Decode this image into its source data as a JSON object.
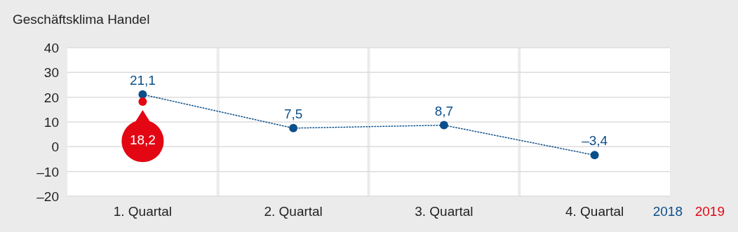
{
  "chart_data": {
    "type": "line",
    "title": "Geschäftsklima Handel",
    "categories": [
      "1. Quartal",
      "2. Quartal",
      "3. Quartal",
      "4. Quartal"
    ],
    "series": [
      {
        "name": "2018",
        "color": "#0b4f8a",
        "values": [
          21.1,
          7.5,
          8.7,
          -3.4
        ],
        "value_labels": [
          "21,1",
          "7,5",
          "8,7",
          "–3,4"
        ],
        "line_style": "dotted",
        "marker": "circle"
      },
      {
        "name": "2019",
        "type": "scatter",
        "color": "#e30613",
        "values": [
          18.2,
          null,
          null,
          null
        ],
        "value_labels": [
          "18,2",
          null,
          null,
          null
        ],
        "marker": "circle"
      }
    ],
    "ylim": [
      -20,
      40
    ],
    "yticks": [
      {
        "value": -20,
        "label": "–20"
      },
      {
        "value": -10,
        "label": "–10"
      },
      0,
      10,
      20,
      30,
      40
    ],
    "grid": "y",
    "legend": "bottom right"
  }
}
